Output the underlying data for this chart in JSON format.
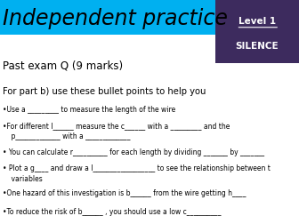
{
  "title": "Independent practice",
  "title_bg": "#00b0f0",
  "title_color": "black",
  "box_bg": "#3d2b5e",
  "box_label": "Level 1",
  "box_sublabel": "SILENCE",
  "box_label_color": "white",
  "subtitle": "Past exam Q (9 marks)",
  "section_header": "For part b) use these bullet points to help you",
  "bullets": [
    "•Use a _________ to measure the length of the wire",
    "•For different l______ measure the c______ with a _________ and the\n    p_____________ with a _____________",
    "• You can calculate r__________ for each length by dividing _______ by _______",
    "• Plot a g____ and draw a l__________________ to see the relationship between t\n    variables",
    "•One hazard of this investigation is b______ from the wire getting h____",
    "•To reduce the risk of b______ , you should use a low c__________"
  ],
  "bg_color": "white"
}
